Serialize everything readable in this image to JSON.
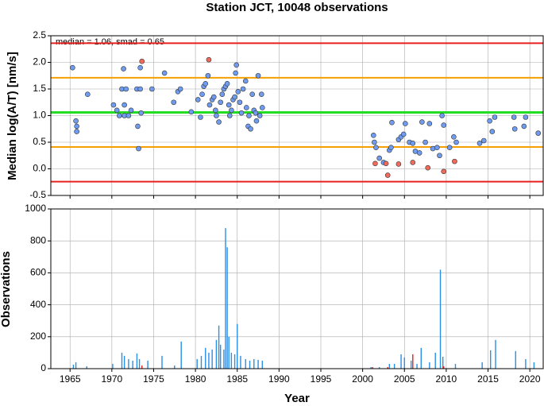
{
  "chart_data": [
    {
      "type": "scatter",
      "title": "Station JCT, 10048 observations",
      "ylabel": "Median log(A/T) [nm/s]",
      "annotation": "median = 1.06, smad = 0.65",
      "xlim": [
        1962.7,
        2021.6
      ],
      "ylim": [
        -0.5,
        2.5
      ],
      "xticks": [
        1965,
        1970,
        1975,
        1980,
        1985,
        1990,
        1995,
        2000,
        2005,
        2010,
        2015,
        2020
      ],
      "yticks": [
        -0.5,
        {
          "value": 0,
          "label": "0.0"
        },
        0.5,
        {
          "value": 1,
          "label": "1.0"
        },
        1.5,
        {
          "value": 2,
          "label": "2.0"
        },
        2.5
      ],
      "grid": true,
      "reference_lines": [
        {
          "value": 2.36,
          "color": "#e8201f"
        },
        {
          "value": 1.71,
          "color": "#f5a000"
        },
        {
          "value": 1.06,
          "color": "#22dd22"
        },
        {
          "value": 0.41,
          "color": "#f5a000"
        },
        {
          "value": -0.24,
          "color": "#e8201f"
        }
      ],
      "series": [
        {
          "color": "#6f9cf0",
          "x": [
            1965.3,
            1965.7,
            1965.8,
            1965.8,
            1967.1,
            1970.2,
            1970.6,
            1970.9,
            1971.2,
            1971.4,
            1971.5,
            1971.5,
            1971.7,
            1972.0,
            1972.3,
            1973.0,
            1973.1,
            1973.2,
            1973.4,
            1973.4,
            1973.5,
            1974.8,
            1976.3,
            1977.4,
            1977.9,
            1978.2,
            1979.5,
            1980.3,
            1980.6,
            1980.8,
            1981.0,
            1981.2,
            1981.5,
            1981.7,
            1982.0,
            1982.2,
            1982.4,
            1982.5,
            1982.8,
            1983.0,
            1983.2,
            1983.4,
            1983.6,
            1983.8,
            1984.0,
            1984.1,
            1984.3,
            1984.5,
            1984.7,
            1984.8,
            1984.9,
            1985.1,
            1985.3,
            1985.5,
            1985.7,
            1986.0,
            1986.1,
            1986.3,
            1986.4,
            1986.6,
            1986.8,
            1987.0,
            1987.2,
            1987.3,
            1987.5,
            1987.7,
            1987.9,
            1988.0,
            2001.3,
            2001.4,
            2001.6,
            2002.0,
            2002.5,
            2003.2,
            2003.4,
            2003.5,
            2004.3,
            2004.6,
            2004.9,
            2005.1,
            2005.6,
            2006.0,
            2006.3,
            2006.8,
            2007.1,
            2007.5,
            2008.0,
            2008.4,
            2008.9,
            2009.2,
            2009.5,
            2009.7,
            2010.4,
            2010.9,
            2011.2,
            2014.0,
            2014.5,
            2015.2,
            2015.5,
            2015.8,
            2018.1,
            2018.2,
            2019.3,
            2019.5,
            2021.0
          ],
          "values": [
            1.9,
            0.9,
            0.8,
            0.7,
            1.4,
            1.2,
            1.1,
            1.0,
            1.5,
            1.88,
            1.2,
            1.0,
            1.5,
            1.0,
            1.1,
            1.5,
            0.8,
            0.38,
            1.5,
            1.9,
            1.05,
            1.5,
            1.8,
            1.25,
            1.45,
            1.5,
            1.07,
            1.3,
            0.97,
            1.4,
            1.55,
            1.6,
            1.75,
            1.2,
            1.3,
            1.35,
            1.1,
            1.0,
            0.88,
            1.25,
            1.4,
            1.5,
            1.55,
            1.6,
            1.2,
            1.0,
            1.1,
            1.3,
            1.35,
            1.8,
            1.95,
            1.45,
            1.25,
            1.05,
            1.5,
            1.65,
            1.15,
            0.8,
            1.0,
            0.75,
            1.4,
            1.1,
            1.05,
            0.9,
            1.75,
            1.0,
            1.4,
            1.15,
            0.63,
            0.5,
            0.4,
            0.2,
            0.12,
            0.35,
            0.4,
            0.87,
            0.55,
            0.6,
            0.65,
            0.85,
            0.5,
            0.48,
            0.33,
            0.3,
            0.88,
            0.5,
            0.85,
            0.38,
            0.4,
            0.25,
            1.0,
            0.82,
            0.4,
            0.6,
            0.5,
            0.48,
            0.53,
            0.9,
            0.7,
            0.97,
            0.97,
            0.75,
            0.8,
            0.97,
            0.67
          ]
        },
        {
          "color": "#f06a5e",
          "x": [
            1973.6,
            1981.6,
            2001.5,
            2002.8,
            2003.0,
            2004.3,
            2006.0,
            2007.8,
            2009.7,
            2011.0
          ],
          "values": [
            2.02,
            2.05,
            0.1,
            0.1,
            -0.12,
            0.09,
            0.12,
            0.02,
            -0.05,
            0.14
          ]
        }
      ]
    },
    {
      "type": "bar",
      "xlabel": "Year",
      "ylabel": "Observations",
      "xlim": [
        1962.7,
        2021.6
      ],
      "ylim": [
        0,
        1000
      ],
      "xticks": [
        1965,
        1970,
        1975,
        1980,
        1985,
        1990,
        1995,
        2000,
        2005,
        2010,
        2015,
        2020
      ],
      "yticks": [
        0,
        200,
        400,
        600,
        800,
        1000
      ],
      "grid": true,
      "series": [
        {
          "color": "#2a8fe6",
          "x": [
            1965.4,
            1965.7,
            1967.0,
            1970.1,
            1971.2,
            1971.5,
            1972.0,
            1972.5,
            1973.0,
            1973.3,
            1974.3,
            1976.0,
            1977.5,
            1978.3,
            1980.2,
            1980.7,
            1981.2,
            1981.6,
            1982.0,
            1982.5,
            1982.8,
            1983.0,
            1983.4,
            1983.6,
            1983.8,
            1984.0,
            1984.3,
            1984.7,
            1985.0,
            1985.4,
            1986.0,
            1986.5,
            1987.0,
            1987.5,
            1988.0,
            2001.0,
            2002.0,
            2003.2,
            2003.8,
            2004.6,
            2005.0,
            2005.8,
            2006.5,
            2007.0,
            2008.0,
            2008.7,
            2009.3,
            2009.6,
            2011.1,
            2014.3,
            2015.3,
            2015.9,
            2018.3,
            2019.5,
            2020.5
          ],
          "values": [
            25,
            40,
            15,
            30,
            100,
            80,
            60,
            50,
            95,
            60,
            50,
            80,
            20,
            170,
            60,
            80,
            130,
            100,
            120,
            180,
            270,
            150,
            120,
            880,
            760,
            200,
            100,
            90,
            280,
            80,
            60,
            50,
            60,
            55,
            50,
            10,
            10,
            30,
            30,
            90,
            70,
            50,
            30,
            130,
            40,
            100,
            620,
            75,
            30,
            40,
            115,
            180,
            110,
            60,
            40
          ]
        },
        {
          "color": "#e8201f",
          "x": [
            1973.6,
            2001.2,
            2003.0,
            2006.0,
            2009.7
          ],
          "values": [
            20,
            10,
            10,
            90,
            15
          ]
        }
      ]
    }
  ]
}
